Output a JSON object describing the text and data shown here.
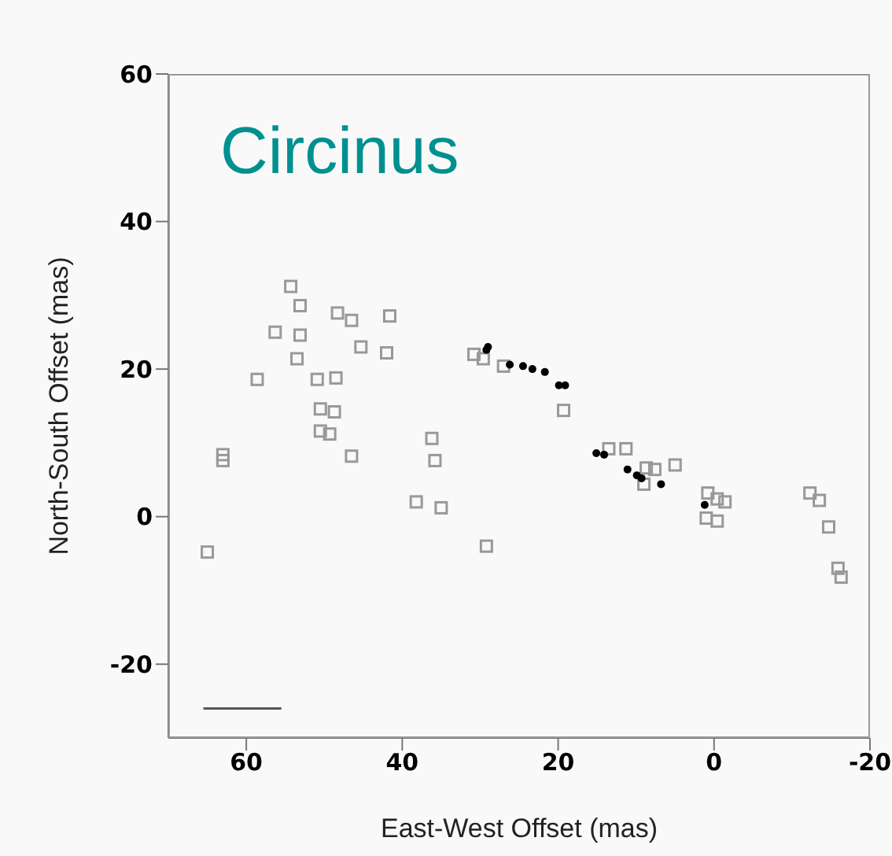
{
  "chart_data": {
    "type": "scatter",
    "title": "Circinus",
    "xlabel": "East-West Offset (mas)",
    "ylabel": "North-South Offset (mas)",
    "xlim": [
      70,
      -20
    ],
    "xticks": [
      60,
      40,
      20,
      0,
      -20
    ],
    "ylim": [
      -30,
      60
    ],
    "yticks": [
      -20,
      0,
      20,
      40,
      60
    ],
    "grid": false,
    "legend": false,
    "series": [
      {
        "color": "#999999",
        "marker": "square",
        "x": [
          54.3,
          53.1,
          48.3,
          46.5,
          41.6,
          56.3,
          53.1,
          45.3,
          42,
          53.5,
          58.6,
          50.9,
          48.5,
          50.5,
          48.7,
          36.2,
          35.8,
          50.5,
          49.3,
          46.5,
          63,
          63,
          65,
          38.2,
          35,
          29.2,
          30.8,
          29.6,
          27,
          19.3,
          11.3,
          8.7,
          7.6,
          5,
          9,
          0.8,
          -0.4,
          -1.4,
          1,
          -0.4,
          -12.3,
          -13.5,
          -14.7,
          -15.9,
          -16.3,
          13.5
        ],
        "values": [
          31.2,
          28.6,
          27.6,
          26.6,
          27.2,
          25,
          24.6,
          23,
          22.2,
          21.4,
          18.6,
          18.6,
          18.8,
          14.6,
          14.2,
          10.6,
          7.6,
          11.6,
          11.2,
          8.2,
          8.4,
          7.6,
          -4.8,
          2,
          1.2,
          -4,
          22,
          21.4,
          20.4,
          14.4,
          9.2,
          6.6,
          6.4,
          7,
          4.4,
          3.2,
          2.4,
          2,
          -0.2,
          -0.6,
          3.2,
          2.2,
          -1.4,
          -7,
          -8.2,
          9.2
        ]
      },
      {
        "type": "line",
        "color": "#555555",
        "marker": "none",
        "x": [
          65.5,
          55.5
        ],
        "values": [
          -26,
          -26
        ]
      },
      {
        "color": "#000000",
        "marker": "circle",
        "x": [
          29,
          29.2,
          26.2,
          24.5,
          23.3,
          21.7,
          19.9,
          19.1,
          15.1,
          14.1,
          11.1,
          9.9,
          9.3,
          6.8,
          1.2
        ],
        "values": [
          23,
          22.6,
          20.6,
          20.4,
          20,
          19.6,
          17.8,
          17.8,
          8.6,
          8.4,
          6.4,
          5.6,
          5.2,
          4.4,
          1.6
        ]
      }
    ]
  }
}
